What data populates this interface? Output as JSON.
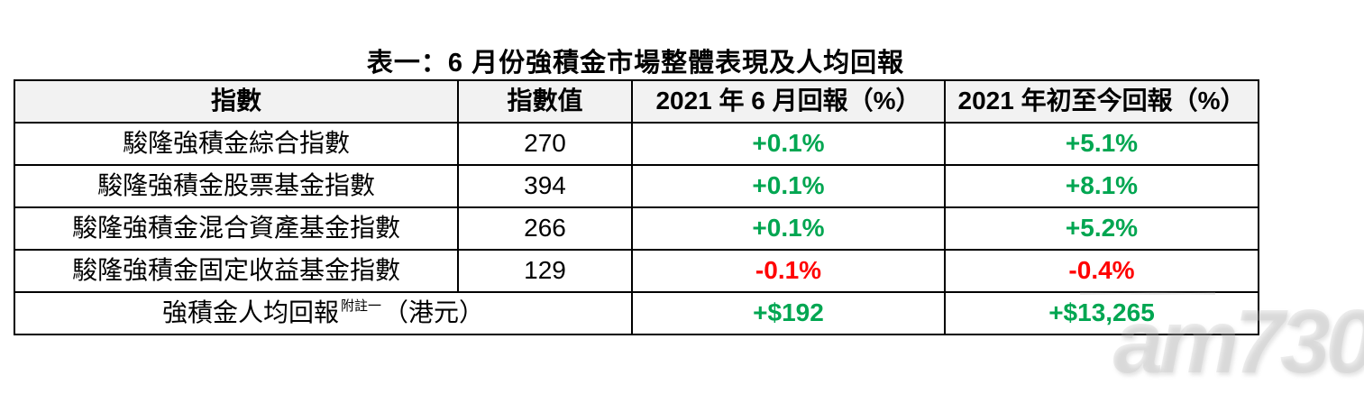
{
  "page": {
    "title": "表一：6 月份強積金市場整體表現及人均回報"
  },
  "colors": {
    "positive": "#00a651",
    "negative": "#ff0000",
    "header_bg": "#f2f2f2",
    "border": "#000000",
    "watermark": "#bdbdbd"
  },
  "table": {
    "headers": [
      "指數",
      "指數值",
      "2021 年 6 月回報（%）",
      "2021 年初至今回報（%）"
    ],
    "rows": [
      {
        "index_name": "駿隆強積金綜合指數",
        "index_value": "270",
        "june_return": "+0.1%",
        "ytd_return": "+5.1%",
        "june_trend": "positive",
        "ytd_trend": "positive"
      },
      {
        "index_name": "駿隆強積金股票基金指數",
        "index_value": "394",
        "june_return": "+0.1%",
        "ytd_return": "+8.1%",
        "june_trend": "positive",
        "ytd_trend": "positive"
      },
      {
        "index_name": "駿隆強積金混合資產基金指數",
        "index_value": "266",
        "june_return": "+0.1%",
        "ytd_return": "+5.2%",
        "june_trend": "positive",
        "ytd_trend": "positive"
      },
      {
        "index_name": "駿隆強積金固定收益基金指數",
        "index_value": "129",
        "june_return": "-0.1%",
        "ytd_return": "-0.4%",
        "june_trend": "negative",
        "ytd_trend": "negative"
      }
    ],
    "summary_row": {
      "label_prefix": "強積金人均回報",
      "label_sup": "附註一",
      "label_suffix": "（港元）",
      "june_return": "+$192",
      "ytd_return": "+$13,265",
      "trend": "positive"
    }
  },
  "watermark": {
    "text": "am730"
  }
}
